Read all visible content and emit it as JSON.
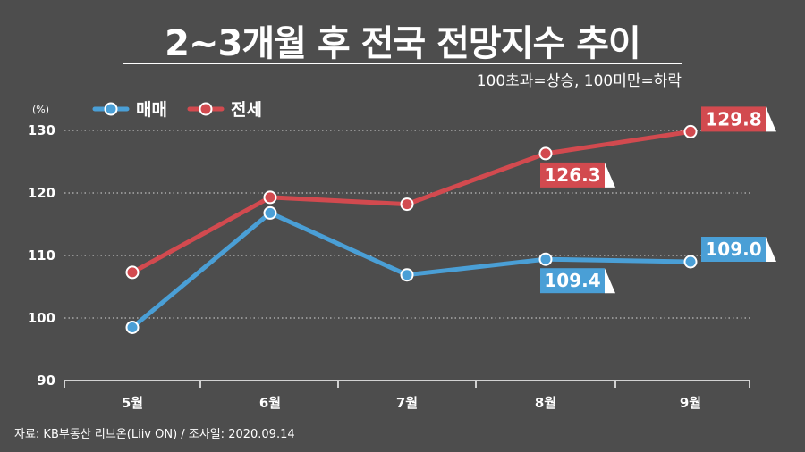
{
  "title": "2~3개월 후 전국 전망지수 추이",
  "subtitle": "100초과=상승, 100미만=하락",
  "source": "자료: KB부동산 리브온(Liiv ON)  / 조사일: 2020.09.14",
  "colors": {
    "background": "#4d4d4d",
    "sale": "#4a9fd6",
    "jeonse": "#d24a4f"
  },
  "chart_data": {
    "type": "line",
    "categories": [
      "5월",
      "6월",
      "7월",
      "8월",
      "9월"
    ],
    "series": [
      {
        "name": "매매",
        "values": [
          98.5,
          116.8,
          106.9,
          109.4,
          109.0
        ]
      },
      {
        "name": "전세",
        "values": [
          107.3,
          119.3,
          118.2,
          126.3,
          129.8
        ]
      }
    ],
    "callouts": [
      {
        "series": 0,
        "index": 3,
        "label": "109.4"
      },
      {
        "series": 0,
        "index": 4,
        "label": "109.0"
      },
      {
        "series": 1,
        "index": 3,
        "label": "126.3"
      },
      {
        "series": 1,
        "index": 4,
        "label": "129.8"
      }
    ],
    "yunit": "(%)",
    "ylim": [
      90,
      130
    ],
    "yticks": [
      90,
      100,
      110,
      120,
      130
    ],
    "grid": true,
    "legend": "top-left"
  }
}
